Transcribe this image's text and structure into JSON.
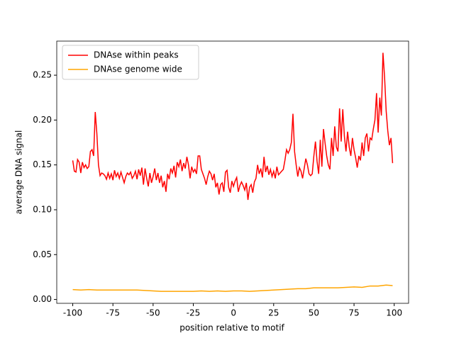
{
  "chart_data": {
    "type": "line",
    "xlabel": "position relative to motif",
    "ylabel": "average DNA signal",
    "xlim": [
      -109.95,
      108.95
    ],
    "ylim": [
      -0.0043,
      0.288
    ],
    "xticks": [
      -100,
      -75,
      -50,
      -25,
      0,
      25,
      50,
      75,
      100
    ],
    "yticks": [
      {
        "value": 0,
        "label": "0.00"
      },
      {
        "value": 0.05,
        "label": "0.05"
      },
      {
        "value": 0.1,
        "label": "0.10"
      },
      {
        "value": 0.15,
        "label": "0.15"
      },
      {
        "value": 0.2,
        "label": "0.20"
      },
      {
        "value": 0.25,
        "label": "0.25"
      }
    ],
    "legend": "upper left",
    "series": [
      {
        "name": "DNAse within peaks",
        "color": "#ff0000",
        "x": [
          -100,
          -99,
          -98,
          -97,
          -96,
          -95,
          -94,
          -93,
          -92,
          -91,
          -90,
          -89,
          -88,
          -87,
          -86,
          -85,
          -84,
          -83,
          -82,
          -81,
          -80,
          -79,
          -78,
          -77,
          -76,
          -75,
          -74,
          -73,
          -72,
          -71,
          -70,
          -69,
          -68,
          -67,
          -66,
          -65,
          -64,
          -63,
          -62,
          -61,
          -60,
          -59,
          -58,
          -57,
          -56,
          -55,
          -54,
          -53,
          -52,
          -51,
          -50,
          -49,
          -48,
          -47,
          -46,
          -45,
          -44,
          -43,
          -42,
          -41,
          -40,
          -39,
          -38,
          -37,
          -36,
          -35,
          -34,
          -33,
          -32,
          -31,
          -30,
          -29,
          -28,
          -27,
          -26,
          -25,
          -24,
          -23,
          -22,
          -21,
          -20,
          -19,
          -18,
          -17,
          -16,
          -15,
          -14,
          -13,
          -12,
          -11,
          -10,
          -9,
          -8,
          -7,
          -6,
          -5,
          -4,
          -3,
          -2,
          -1,
          0,
          1,
          2,
          3,
          4,
          5,
          6,
          7,
          8,
          9,
          10,
          11,
          12,
          13,
          14,
          15,
          16,
          17,
          18,
          19,
          20,
          21,
          22,
          23,
          24,
          25,
          26,
          27,
          28,
          29,
          30,
          31,
          32,
          33,
          34,
          35,
          36,
          37,
          38,
          39,
          40,
          41,
          42,
          43,
          44,
          45,
          46,
          47,
          48,
          49,
          50,
          51,
          52,
          53,
          54,
          55,
          56,
          57,
          58,
          59,
          60,
          61,
          62,
          63,
          64,
          65,
          66,
          67,
          68,
          69,
          70,
          71,
          72,
          73,
          74,
          75,
          76,
          77,
          78,
          79,
          80,
          81,
          82,
          83,
          84,
          85,
          86,
          87,
          88,
          89,
          90,
          91,
          92,
          93,
          94,
          95,
          96,
          97,
          98,
          99
        ],
        "values": [
          0.155,
          0.143,
          0.142,
          0.156,
          0.153,
          0.141,
          0.153,
          0.147,
          0.15,
          0.146,
          0.148,
          0.165,
          0.167,
          0.16,
          0.209,
          0.185,
          0.15,
          0.138,
          0.141,
          0.14,
          0.138,
          0.134,
          0.141,
          0.135,
          0.14,
          0.133,
          0.144,
          0.137,
          0.141,
          0.135,
          0.142,
          0.136,
          0.13,
          0.137,
          0.141,
          0.139,
          0.142,
          0.135,
          0.138,
          0.143,
          0.134,
          0.145,
          0.138,
          0.147,
          0.128,
          0.146,
          0.135,
          0.126,
          0.141,
          0.13,
          0.137,
          0.146,
          0.133,
          0.141,
          0.13,
          0.138,
          0.125,
          0.132,
          0.12,
          0.14,
          0.134,
          0.146,
          0.141,
          0.149,
          0.136,
          0.153,
          0.148,
          0.156,
          0.143,
          0.152,
          0.146,
          0.159,
          0.15,
          0.135,
          0.148,
          0.142,
          0.145,
          0.14,
          0.16,
          0.16,
          0.145,
          0.14,
          0.135,
          0.128,
          0.137,
          0.143,
          0.14,
          0.133,
          0.14,
          0.125,
          0.13,
          0.117,
          0.128,
          0.13,
          0.12,
          0.142,
          0.144,
          0.125,
          0.119,
          0.132,
          0.126,
          0.132,
          0.136,
          0.12,
          0.127,
          0.131,
          0.127,
          0.122,
          0.13,
          0.111,
          0.125,
          0.128,
          0.119,
          0.131,
          0.135,
          0.15,
          0.14,
          0.146,
          0.136,
          0.159,
          0.142,
          0.149,
          0.139,
          0.145,
          0.137,
          0.143,
          0.135,
          0.148,
          0.139,
          0.141,
          0.143,
          0.145,
          0.155,
          0.167,
          0.163,
          0.167,
          0.175,
          0.207,
          0.165,
          0.15,
          0.137,
          0.147,
          0.143,
          0.135,
          0.146,
          0.157,
          0.15,
          0.14,
          0.138,
          0.14,
          0.16,
          0.176,
          0.154,
          0.14,
          0.178,
          0.148,
          0.19,
          0.174,
          0.16,
          0.15,
          0.145,
          0.18,
          0.16,
          0.193,
          0.17,
          0.165,
          0.213,
          0.176,
          0.212,
          0.182,
          0.165,
          0.187,
          0.17,
          0.16,
          0.18,
          0.167,
          0.158,
          0.147,
          0.16,
          0.155,
          0.175,
          0.16,
          0.18,
          0.185,
          0.165,
          0.18,
          0.178,
          0.19,
          0.2,
          0.23,
          0.186,
          0.225,
          0.205,
          0.275,
          0.248,
          0.21,
          0.188,
          0.172,
          0.18,
          0.152
        ]
      },
      {
        "name": "DNAse genome wide",
        "color": "#ffa500",
        "x": [
          -100,
          -95,
          -90,
          -85,
          -80,
          -75,
          -70,
          -65,
          -60,
          -55,
          -50,
          -45,
          -40,
          -35,
          -30,
          -25,
          -20,
          -15,
          -10,
          -5,
          0,
          5,
          10,
          15,
          20,
          25,
          30,
          35,
          40,
          45,
          50,
          55,
          60,
          65,
          70,
          75,
          80,
          85,
          90,
          95,
          99
        ],
        "values": [
          0.011,
          0.0105,
          0.011,
          0.0105,
          0.0105,
          0.0105,
          0.0105,
          0.0105,
          0.0105,
          0.01,
          0.0095,
          0.009,
          0.009,
          0.009,
          0.009,
          0.009,
          0.0095,
          0.009,
          0.0095,
          0.009,
          0.0095,
          0.0095,
          0.009,
          0.0095,
          0.01,
          0.0105,
          0.011,
          0.0115,
          0.012,
          0.012,
          0.013,
          0.013,
          0.013,
          0.013,
          0.0135,
          0.014,
          0.0135,
          0.015,
          0.015,
          0.016,
          0.0155
        ]
      }
    ]
  }
}
